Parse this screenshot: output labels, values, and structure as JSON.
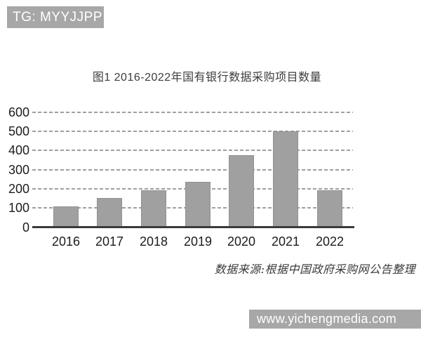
{
  "watermark_top": {
    "text": "TG: MYYJJPP"
  },
  "watermark_bottom": {
    "text": "www.yichengmedia.com"
  },
  "source_note": "数据来源:根据中国政府采购网公告整理",
  "colors": {
    "banner_bg": "#a7a7a7",
    "bar": "#a0a0a0",
    "gridline": "#9f9f9f",
    "axis": "#3a3a3a",
    "title_text": "#3c3c3c",
    "tick_text": "#1c1c1c",
    "background": "#ffffff"
  },
  "chart_data": {
    "type": "bar",
    "title": "图1 2016-2022年国有银行数据采购项目数量",
    "categories": [
      "2016",
      "2017",
      "2018",
      "2019",
      "2020",
      "2021",
      "2022"
    ],
    "values": [
      105,
      150,
      190,
      235,
      375,
      500,
      190
    ],
    "xlabel": "",
    "ylabel": "",
    "ylim": [
      0,
      600
    ],
    "yticks": [
      0,
      100,
      200,
      300,
      400,
      500,
      600
    ],
    "grid": "horizontal-dashed",
    "legend": "none",
    "bar_color": "#a0a0a0",
    "source_note": "数据来源:根据中国政府采购网公告整理"
  }
}
